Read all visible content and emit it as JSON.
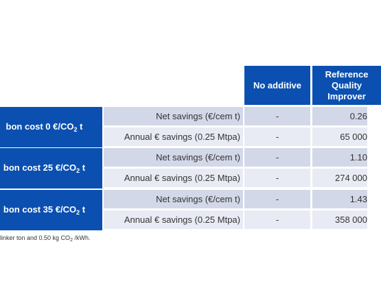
{
  "header": {
    "no_additive": "No additive",
    "ref_line1": "Reference",
    "ref_line2": "Quality",
    "ref_line3": "Improver"
  },
  "groups": [
    {
      "label_prefix": "bon cost 0 €/CO",
      "label_sub": "2",
      "label_suffix": " t",
      "rows": [
        {
          "label": "Net savings (€/cem t)",
          "no_additive": "-",
          "reference": "0.26"
        },
        {
          "label": "Annual € savings (0.25 Mtpa)",
          "no_additive": "-",
          "reference": "65 000"
        }
      ]
    },
    {
      "label_prefix": "bon cost 25 €/CO",
      "label_sub": "2",
      "label_suffix": " t",
      "rows": [
        {
          "label": "Net savings (€/cem t)",
          "no_additive": "-",
          "reference": "1.10"
        },
        {
          "label": "Annual € savings (0.25 Mtpa)",
          "no_additive": "-",
          "reference": "274 000"
        }
      ]
    },
    {
      "label_prefix": "bon cost 35 €/CO",
      "label_sub": "2",
      "label_suffix": " t",
      "rows": [
        {
          "label": "Net savings (€/cem t)",
          "no_additive": "-",
          "reference": "1.43"
        },
        {
          "label": "Annual € savings (0.25 Mtpa)",
          "no_additive": "-",
          "reference": "358 000"
        }
      ]
    }
  ],
  "footnote": {
    "prefix": "linker ton and 0.50 kg CO",
    "sub": "2",
    "suffix": " /kWh."
  }
}
